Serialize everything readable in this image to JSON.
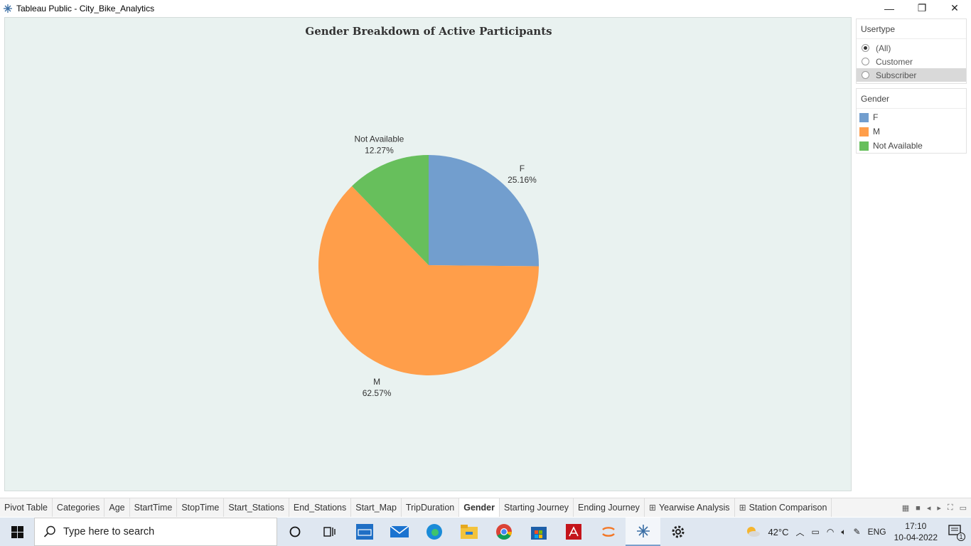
{
  "window": {
    "title": "Tableau Public - City_Bike_Analytics",
    "minimize": "—",
    "restore": "❐",
    "close": "✕"
  },
  "chart_data": {
    "type": "pie",
    "title": "Gender Breakdown of Active Participants",
    "slices": [
      {
        "name": "F",
        "value": 25.16,
        "label": "25.16%",
        "color": "#729ece"
      },
      {
        "name": "M",
        "value": 62.57,
        "label": "62.57%",
        "color": "#ff9e4a"
      },
      {
        "name": "Not Available",
        "value": 12.27,
        "label": "12.27%",
        "color": "#67bf5c"
      }
    ]
  },
  "filters": {
    "usertype": {
      "header": "Usertype",
      "options": [
        "(All)",
        "Customer",
        "Subscriber"
      ],
      "selected": "(All)"
    }
  },
  "legend": {
    "header": "Gender",
    "items": [
      {
        "label": "F",
        "color": "#729ece"
      },
      {
        "label": "M",
        "color": "#ff9e4a"
      },
      {
        "label": "Not Available",
        "color": "#67bf5c"
      }
    ]
  },
  "sheet_tabs": [
    {
      "label": "Pivot Table",
      "dashboard": false
    },
    {
      "label": "Categories",
      "dashboard": false
    },
    {
      "label": "Age",
      "dashboard": false
    },
    {
      "label": "StartTime",
      "dashboard": false
    },
    {
      "label": "StopTime",
      "dashboard": false
    },
    {
      "label": "Start_Stations",
      "dashboard": false
    },
    {
      "label": "End_Stations",
      "dashboard": false
    },
    {
      "label": "Start_Map",
      "dashboard": false
    },
    {
      "label": "TripDuration",
      "dashboard": false
    },
    {
      "label": "Gender",
      "dashboard": false,
      "active": true
    },
    {
      "label": "Starting Journey",
      "dashboard": false
    },
    {
      "label": "Ending Journey",
      "dashboard": false
    },
    {
      "label": "Yearwise Analysis",
      "dashboard": true
    },
    {
      "label": "Station Comparison",
      "dashboard": true
    }
  ],
  "taskbar": {
    "search_placeholder": "Type here to search",
    "weather": "42°C",
    "language": "ENG",
    "time": "17:10",
    "date": "10-04-2022",
    "notifications": "1"
  }
}
